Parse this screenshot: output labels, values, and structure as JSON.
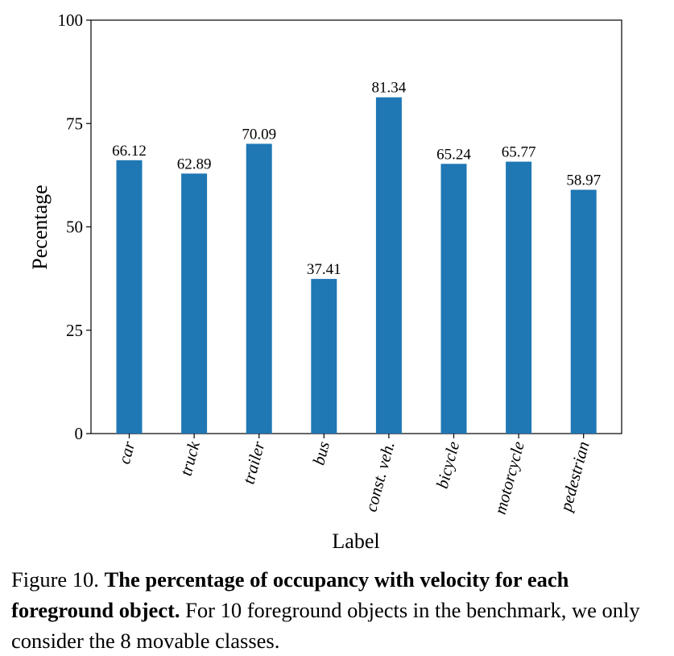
{
  "chart_data": {
    "type": "bar",
    "categories": [
      "car",
      "truck",
      "trailer",
      "bus",
      "const. veh.",
      "bicycle",
      "motorcycle",
      "pedestrian"
    ],
    "values": [
      66.12,
      62.89,
      70.09,
      37.41,
      81.34,
      65.24,
      65.77,
      58.97
    ],
    "data_labels": [
      "66.12",
      "62.89",
      "70.09",
      "37.41",
      "81.34",
      "65.24",
      "65.77",
      "58.97"
    ],
    "title": "",
    "xlabel": "Label",
    "ylabel": "Pecentage",
    "ylim": [
      0,
      100
    ],
    "yticks": [
      "0",
      "25",
      "50",
      "75",
      "100"
    ],
    "bar_color": "#1f77b4",
    "grid": false,
    "legend": "none"
  },
  "caption": {
    "prefix": "Figure 10.",
    "title": "The percentage of occupancy with velocity for each foreground object.",
    "body": "For 10 foreground objects in the benchmark, we only consider the 8 movable classes."
  }
}
